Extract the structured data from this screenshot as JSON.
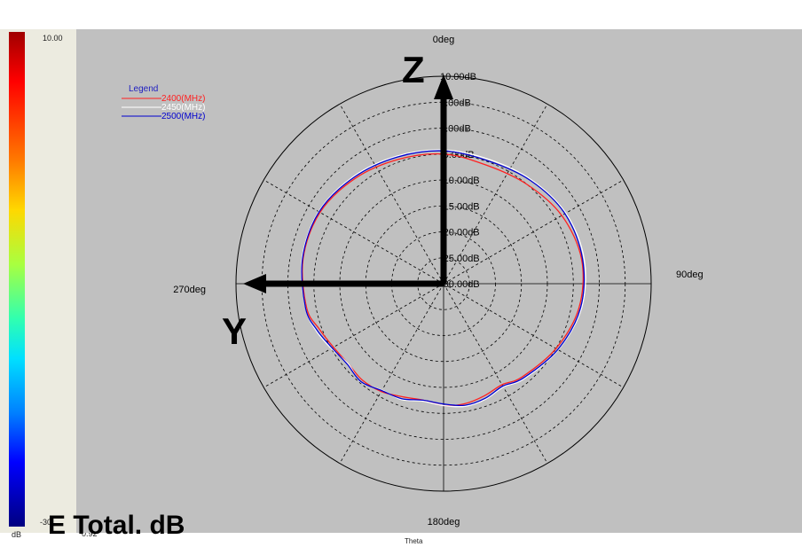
{
  "colorbar": {
    "top_label": "10.00",
    "unit": "dB",
    "min_label": "-30",
    "min_value": "0.92"
  },
  "title": "E Total. dB",
  "x_label": "Theta",
  "axes": {
    "z": "Z",
    "y": "Y"
  },
  "chart_data": {
    "type": "polar",
    "angle_labels": [
      "0deg",
      "90deg",
      "180deg",
      "270deg"
    ],
    "radial_labels": [
      "10.00dB",
      "5.00dB",
      "0.00dB",
      "-5.00dB",
      "-10.00dB",
      "-15.00dB",
      "-20.00dB",
      "-25.00dB",
      "-30.00dB"
    ],
    "r_range_db": [
      -30,
      10
    ],
    "angle_zero": "top",
    "angle_direction": "clockwise",
    "grid": true,
    "legend": {
      "title": "Legend",
      "position": "top-left"
    },
    "theta_deg": [
      0,
      20,
      40,
      60,
      80,
      100,
      120,
      140,
      150,
      160,
      170,
      180,
      190,
      200,
      210,
      220,
      230,
      240,
      250,
      260,
      280,
      300,
      320,
      340
    ],
    "series": [
      {
        "name": "2400(MHz)",
        "color": "#ff2020",
        "values": [
          -5.0,
          -5.7,
          -5.0,
          -3.7,
          -3.0,
          -3.5,
          -5.0,
          -6.5,
          -7.5,
          -7.0,
          -6.5,
          -6.5,
          -7.2,
          -6.8,
          -6.0,
          -5.7,
          -6.0,
          -5.5,
          -4.5,
          -3.2,
          -2.5,
          -2.5,
          -3.5,
          -4.5
        ]
      },
      {
        "name": "2450(MHz)",
        "color": "#ffffff",
        "values": [
          -4.2,
          -4.5,
          -3.8,
          -2.8,
          -2.5,
          -3.0,
          -4.5,
          -6.0,
          -7.0,
          -6.3,
          -6.0,
          -6.5,
          -7.0,
          -6.2,
          -6.3,
          -5.2,
          -6.0,
          -5.0,
          -3.8,
          -3.0,
          -2.3,
          -2.2,
          -3.0,
          -3.8
        ]
      },
      {
        "name": "2500(MHz)",
        "color": "#0000d0",
        "values": [
          -4.4,
          -4.8,
          -4.0,
          -3.0,
          -2.8,
          -3.2,
          -4.6,
          -6.2,
          -7.2,
          -6.5,
          -6.2,
          -6.8,
          -7.2,
          -6.4,
          -6.2,
          -5.3,
          -5.8,
          -5.2,
          -4.0,
          -3.0,
          -2.4,
          -2.3,
          -3.2,
          -4.0
        ]
      }
    ]
  }
}
